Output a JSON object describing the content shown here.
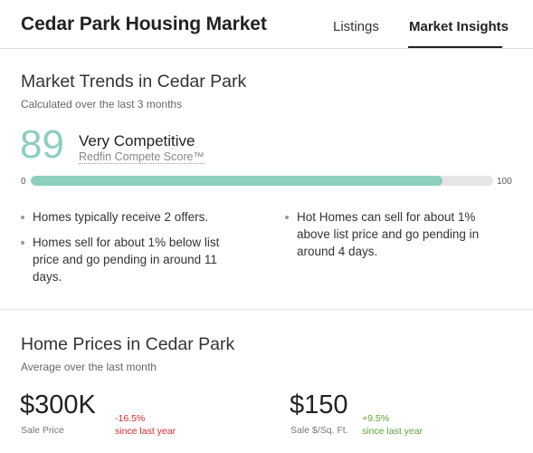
{
  "header": {
    "title": "Cedar Park Housing Market",
    "tabs": [
      {
        "label": "Listings",
        "active": false
      },
      {
        "label": "Market Insights",
        "active": true
      }
    ]
  },
  "trends": {
    "title": "Market Trends in Cedar Park",
    "subtitle": "Calculated over the last 3 months",
    "score": "89",
    "score_label": "Very Competitive",
    "score_link": "Redfin Compete Score™",
    "bar": {
      "min": "0",
      "max": "100",
      "value": 89
    },
    "bullets": [
      "Homes typically receive 2 offers.",
      "Homes sell for about 1% below list price and go pending in around 11 days.",
      "Hot Homes can sell for about 1% above list price and go pending in around 4 days."
    ]
  },
  "prices": {
    "title": "Home Prices in Cedar Park",
    "subtitle": "Average over the last month",
    "sale_price": {
      "value": "$300K",
      "label": "Sale Price",
      "change": "-16.5%",
      "change_note": "since last year"
    },
    "sqft_price": {
      "value": "$150",
      "label": "Sale $/Sq. Ft.",
      "change": "+9.5%",
      "change_note": "since last year"
    }
  },
  "colors": {
    "accent": "#8ccfbf",
    "negative": "#d12c2c",
    "positive": "#5ba33a"
  }
}
